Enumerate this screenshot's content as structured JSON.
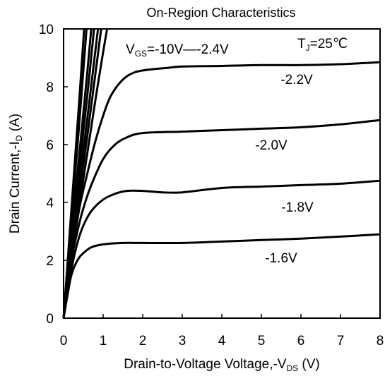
{
  "chart_data": {
    "type": "line",
    "title": "On-Region Characteristics",
    "xlabel": {
      "prefix": "Drain-to-Voltage Voltage,-V",
      "sub": "DS",
      "suffix": " (V)"
    },
    "ylabel": {
      "prefix": "Drain Current,-I",
      "sub": "D",
      "suffix": " (A)"
    },
    "xlim": [
      0,
      8
    ],
    "ylim": [
      0,
      10
    ],
    "xticks": [
      0,
      1,
      2,
      3,
      4,
      5,
      6,
      7,
      8
    ],
    "yticks": [
      0,
      2,
      4,
      6,
      8,
      10
    ],
    "grid": false,
    "annotations": {
      "vgs": {
        "prefix": "V",
        "sub": "GS",
        "suffix": "=-10V—-2.4V"
      },
      "tj": {
        "prefix": "T",
        "sub": "J",
        "suffix": "=25℃"
      }
    },
    "series": [
      {
        "label": "-1.6V",
        "x": [
          0,
          0.1,
          0.2,
          0.35,
          0.5,
          0.7,
          1.0,
          1.5,
          2,
          3,
          4,
          5,
          6,
          7,
          8
        ],
        "y": [
          0,
          0.8,
          1.5,
          2.0,
          2.25,
          2.45,
          2.55,
          2.6,
          2.6,
          2.6,
          2.65,
          2.7,
          2.75,
          2.82,
          2.9
        ]
      },
      {
        "label": "-1.8V",
        "x": [
          0,
          0.1,
          0.2,
          0.35,
          0.5,
          0.7,
          1.0,
          1.3,
          1.6,
          2,
          2.5,
          3,
          4,
          5,
          6,
          7,
          8
        ],
        "y": [
          0,
          0.9,
          1.7,
          2.6,
          3.2,
          3.7,
          4.1,
          4.3,
          4.4,
          4.4,
          4.35,
          4.35,
          4.5,
          4.55,
          4.6,
          4.65,
          4.75
        ]
      },
      {
        "label": "-2.0V",
        "x": [
          0,
          0.1,
          0.2,
          0.35,
          0.5,
          0.7,
          1.0,
          1.3,
          1.6,
          2,
          3,
          4,
          5,
          6,
          7,
          8
        ],
        "y": [
          0,
          1.0,
          2.0,
          3.0,
          3.8,
          4.6,
          5.5,
          6.0,
          6.25,
          6.4,
          6.45,
          6.5,
          6.55,
          6.6,
          6.7,
          6.85
        ]
      },
      {
        "label": "-2.2V",
        "x": [
          0,
          0.2,
          0.4,
          0.6,
          0.8,
          1.0,
          1.2,
          1.5,
          1.8,
          2.2,
          2.6,
          3,
          4,
          5,
          6,
          7,
          8
        ],
        "y": [
          0,
          2.1,
          3.8,
          5.0,
          6.1,
          7.0,
          7.7,
          8.25,
          8.5,
          8.6,
          8.65,
          8.7,
          8.72,
          8.75,
          8.75,
          8.78,
          8.85
        ]
      },
      {
        "label": "",
        "x": [
          0,
          0.2,
          0.4,
          0.6,
          0.8,
          1.0,
          1.1
        ],
        "y": [
          0,
          2.0,
          3.9,
          5.7,
          7.5,
          9.2,
          10
        ]
      },
      {
        "label": "",
        "x": [
          0,
          0.2,
          0.4,
          0.6,
          0.8,
          0.95
        ],
        "y": [
          0,
          2.2,
          4.3,
          6.3,
          8.4,
          10
        ]
      },
      {
        "label": "",
        "x": [
          0,
          0.2,
          0.4,
          0.6,
          0.8,
          0.87
        ],
        "y": [
          0,
          2.4,
          4.7,
          6.9,
          9.2,
          10
        ]
      },
      {
        "label": "",
        "x": [
          0,
          0.2,
          0.4,
          0.6,
          0.77
        ],
        "y": [
          0,
          2.6,
          5.2,
          7.7,
          10
        ]
      },
      {
        "label": "",
        "x": [
          0,
          0.2,
          0.4,
          0.6,
          0.7
        ],
        "y": [
          0,
          2.9,
          5.7,
          8.5,
          10
        ]
      },
      {
        "label": "",
        "x": [
          0,
          0.2,
          0.4,
          0.58
        ],
        "y": [
          0,
          3.4,
          6.8,
          10
        ]
      },
      {
        "label": "",
        "x": [
          0,
          0.2,
          0.4,
          0.52
        ],
        "y": [
          0,
          3.8,
          7.6,
          10
        ]
      }
    ]
  }
}
